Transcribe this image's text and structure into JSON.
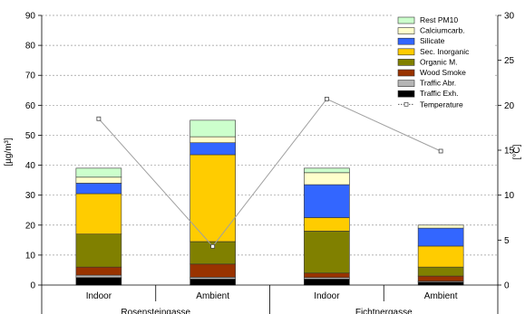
{
  "chart_data": {
    "type": "bar",
    "stacked": true,
    "categories": [
      "Indoor",
      "Ambient",
      "Indoor",
      "Ambient"
    ],
    "groups": [
      {
        "label": "Rosensteingasse",
        "categories": [
          0,
          1
        ]
      },
      {
        "label": "Fichtnergasse",
        "categories": [
          2,
          3
        ]
      }
    ],
    "ylabel_left": "[µg/m³]",
    "ylabel_right": "[°C]",
    "ylim_left": [
      0,
      90
    ],
    "ylim_right": [
      0,
      30
    ],
    "yticks_left": [
      0,
      10,
      20,
      30,
      40,
      50,
      60,
      70,
      80,
      90
    ],
    "yticks_right": [
      0,
      5,
      10,
      15,
      20,
      25,
      30
    ],
    "grid": "horizontal dashed",
    "legend_position": "top-right",
    "series": [
      {
        "name": "Traffic Exh.",
        "color": "#000000",
        "values": [
          2.5,
          2.0,
          2.0,
          1.0
        ]
      },
      {
        "name": "Traffic Abr.",
        "color": "#b5b5b5",
        "values": [
          0.8,
          0.6,
          0.5,
          0.3
        ]
      },
      {
        "name": "Wood Smoke",
        "color": "#993300",
        "values": [
          2.7,
          4.4,
          1.5,
          1.7
        ]
      },
      {
        "name": "Organic M.",
        "color": "#808000",
        "values": [
          11.0,
          7.5,
          14.0,
          3.0
        ]
      },
      {
        "name": "Sec. Inorganic",
        "color": "#ffcc00",
        "values": [
          13.5,
          29.0,
          4.5,
          7.0
        ]
      },
      {
        "name": "Silicate",
        "color": "#3366ff",
        "values": [
          3.5,
          4.0,
          11.0,
          6.0
        ]
      },
      {
        "name": "Calciumcarb.",
        "color": "#ffffcc",
        "values": [
          2.0,
          2.0,
          4.0,
          1.0
        ]
      },
      {
        "name": "Rest PM10",
        "color": "#ccffcc",
        "values": [
          3.0,
          5.5,
          1.5,
          0.0
        ]
      }
    ],
    "line_series": {
      "name": "Temperature",
      "axis": "right",
      "color": "#a0a0a0",
      "values": [
        18.5,
        4.3,
        20.7,
        14.9
      ]
    }
  }
}
